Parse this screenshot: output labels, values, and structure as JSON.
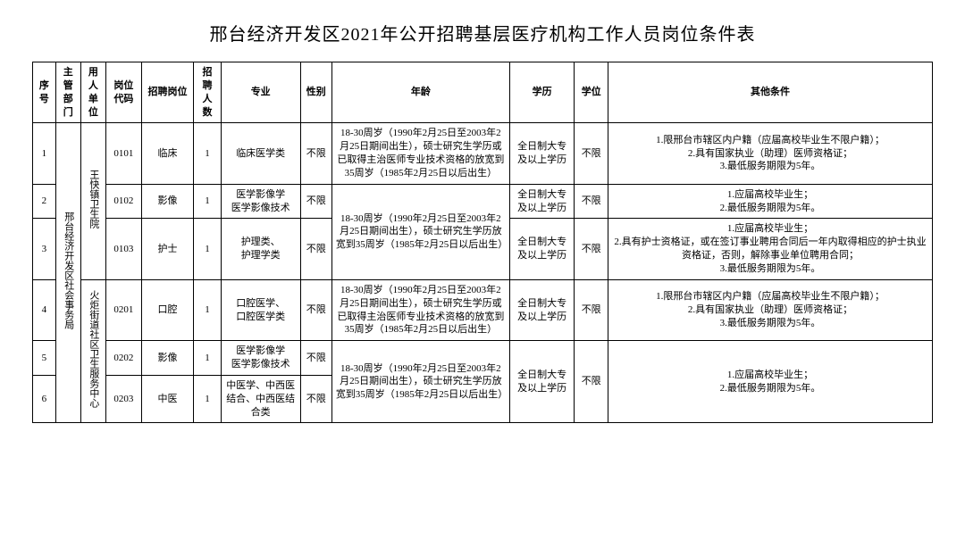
{
  "title": "邢台经济开发区2021年公开招聘基层医疗机构工作人员岗位条件表",
  "headers": {
    "no": "序号",
    "dept": "主管部门",
    "unit": "用人单位",
    "code": "岗位代码",
    "pos": "招聘岗位",
    "count": "招聘人数",
    "major": "专业",
    "sex": "性别",
    "age": "年龄",
    "edu": "学历",
    "deg": "学位",
    "other": "其他条件"
  },
  "dept": "邢台经济开发区社会事务局",
  "units": {
    "u1": "王快镇卫生院",
    "u2": "火炬街道社区卫生服务中心"
  },
  "common": {
    "sex": "不限",
    "edu": "全日制大专及以上学历",
    "deg": "不限"
  },
  "age_texts": {
    "a1": "18-30周岁（1990年2月25日至2003年2月25日期间出生），硕士研究生学历或已取得主治医师专业技术资格的放宽到35周岁（1985年2月25日以后出生）",
    "a2": "18-30周岁（1990年2月25日至2003年2月25日期间出生），硕士研究生学历放宽到35周岁（1985年2月25日以后出生）"
  },
  "other_texts": {
    "o1": "1.限邢台市辖区内户籍（应届高校毕业生不限户籍）；\n2.具有国家执业（助理）医师资格证；\n3.最低服务期限为5年。",
    "o2": "1.应届高校毕业生；\n2.最低服务期限为5年。",
    "o3": "1.应届高校毕业生；\n2.具有护士资格证，或在签订事业聘用合同后一年内取得相应的护士执业资格证，否则，解除事业单位聘用合同；\n3.最低服务期限为5年。"
  },
  "rows": [
    {
      "no": "1",
      "code": "0101",
      "pos": "临床",
      "count": "1",
      "major": "临床医学类"
    },
    {
      "no": "2",
      "code": "0102",
      "pos": "影像",
      "count": "1",
      "major": "医学影像学\n医学影像技术"
    },
    {
      "no": "3",
      "code": "0103",
      "pos": "护士",
      "count": "1",
      "major": "护理类、\n护理学类"
    },
    {
      "no": "4",
      "code": "0201",
      "pos": "口腔",
      "count": "1",
      "major": "口腔医学、\n口腔医学类"
    },
    {
      "no": "5",
      "code": "0202",
      "pos": "影像",
      "count": "1",
      "major": "医学影像学\n医学影像技术"
    },
    {
      "no": "6",
      "code": "0203",
      "pos": "中医",
      "count": "1",
      "major": "中医学、中西医结合、中西医结合类"
    }
  ],
  "style": {
    "bg": "#ffffff",
    "border": "#000000",
    "title_fontsize": 20,
    "cell_fontsize": 11
  }
}
